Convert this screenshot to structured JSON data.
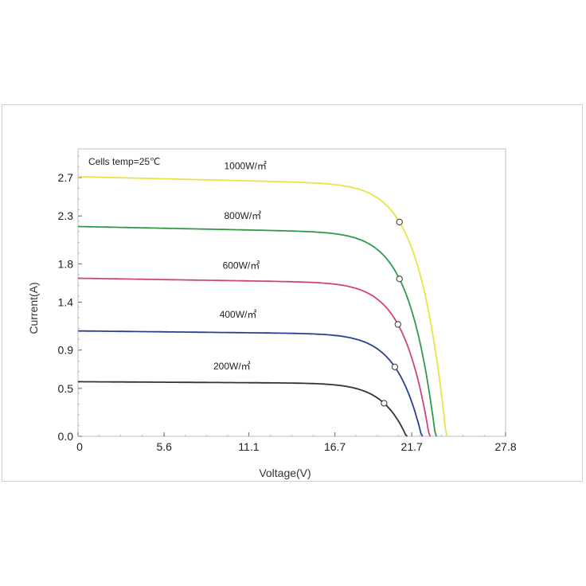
{
  "chart_data": {
    "type": "line",
    "annotation": "Cells temp=25℃",
    "xlabel": "Voltage(V)",
    "ylabel": "Current(A)",
    "xlim": [
      0,
      27.8
    ],
    "ylim": [
      0,
      3.0
    ],
    "x_ticks": [
      0,
      5.6,
      11.1,
      16.7,
      21.7,
      27.8
    ],
    "x_tick_labels": [
      "0",
      "5.6",
      "11.1",
      "16.7",
      "21.7",
      "27.8"
    ],
    "y_ticks": [
      0.0,
      0.5,
      0.9,
      1.4,
      1.8,
      2.3,
      2.7
    ],
    "y_tick_labels": [
      "0.0",
      "0.5",
      "0.9",
      "1.4",
      "1.8",
      "2.3",
      "2.7"
    ],
    "grid": false,
    "series": [
      {
        "name": "1000W/㎡",
        "color": "#e8e34a",
        "isc": 2.71,
        "voc": 24.0,
        "mpp": [
          20.9,
          2.47
        ],
        "label_pos": [
          9.5,
          2.79
        ],
        "knee": 19.8
      },
      {
        "name": "800W/㎡",
        "color": "#2f9a48",
        "isc": 2.19,
        "voc": 23.3,
        "mpp": [
          20.9,
          1.97
        ],
        "label_pos": [
          9.5,
          2.27
        ],
        "knee": 19.7
      },
      {
        "name": "600W/㎡",
        "color": "#d0447a",
        "isc": 1.65,
        "voc": 22.9,
        "mpp": [
          20.8,
          1.5
        ],
        "label_pos": [
          9.4,
          1.75
        ],
        "knee": 19.6
      },
      {
        "name": "400W/㎡",
        "color": "#2c3f8f",
        "isc": 1.1,
        "voc": 22.4,
        "mpp": [
          20.6,
          1.0
        ],
        "label_pos": [
          9.2,
          1.24
        ],
        "knee": 19.5
      },
      {
        "name": "200W/㎡",
        "color": "#333333",
        "isc": 0.57,
        "voc": 21.4,
        "mpp": [
          19.9,
          0.51
        ],
        "label_pos": [
          8.8,
          0.7
        ],
        "knee": 18.8
      }
    ]
  }
}
